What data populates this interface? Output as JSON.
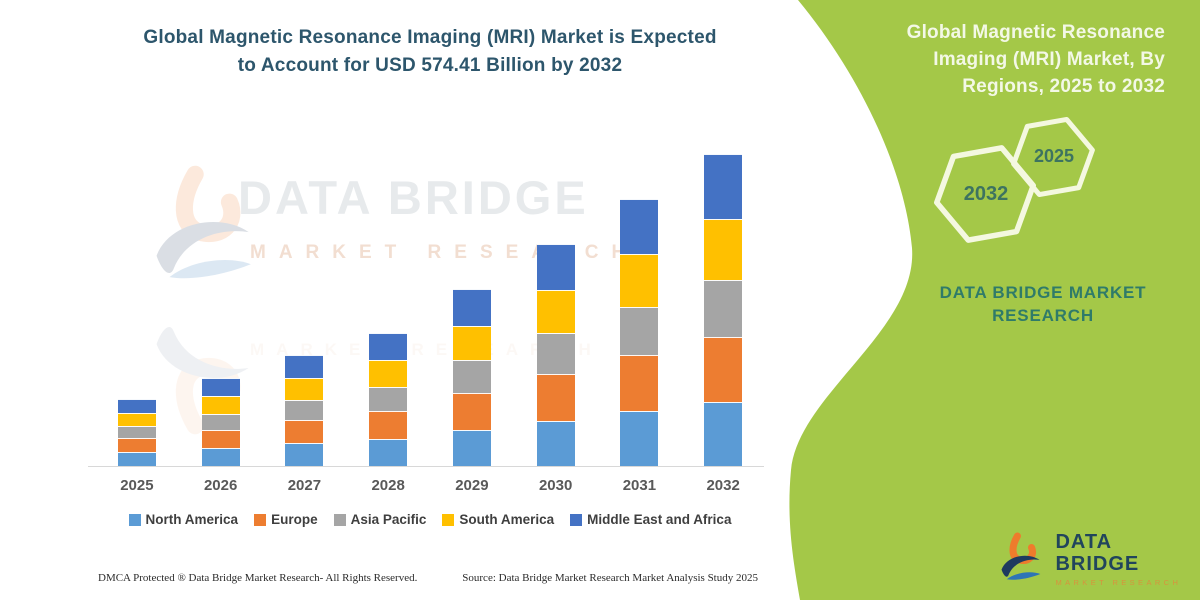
{
  "left": {
    "title_line1": "Global Magnetic Resonance Imaging (MRI) Market is Expected",
    "title_line2": "to Account for USD 574.41 Billion by 2032",
    "footer_dmca": "DMCA Protected ® Data Bridge Market Research-  All Rights Reserved.",
    "footer_source": "Source: Data Bridge Market Research  Market Analysis Study 2025"
  },
  "watermark": {
    "line1": "DATA BRIDGE",
    "line2": "MARKET RESEARCH"
  },
  "right_panel": {
    "bg_color": "#a4c848",
    "title_lines": [
      "Global Magnetic Resonance",
      "Imaging (MRI) Market, By",
      "Regions, 2025 to 2032"
    ],
    "hexagon_large_year": "2032",
    "hexagon_small_year": "2025",
    "brand_line1": "DATA BRIDGE MARKET",
    "brand_line2": "RESEARCH",
    "corner_logo_name": "DATA BRIDGE",
    "corner_logo_sub": "MARKET RESEARCH"
  },
  "chart_data": {
    "type": "bar",
    "stacked": true,
    "title": "Global Magnetic Resonance Imaging (MRI) Market is Expected to Account for USD 574.41 Billion by 2032",
    "unit": "USD Billion",
    "xlabel": "",
    "ylabel": "",
    "gridlines": false,
    "legend_position": "bottom",
    "ylim": [
      0,
      600
    ],
    "categories": [
      "2025",
      "2026",
      "2027",
      "2028",
      "2029",
      "2030",
      "2031",
      "2032"
    ],
    "series": [
      {
        "name": "North America",
        "color": "#5B9BD5",
        "values": [
          25.2,
          33.2,
          41.8,
          50.2,
          66.8,
          83.8,
          100.9,
          117.8
        ]
      },
      {
        "name": "Europe",
        "color": "#ED7D31",
        "values": [
          25.8,
          34.0,
          42.8,
          51.5,
          68.5,
          85.9,
          103.3,
          120.6
        ]
      },
      {
        "name": "Asia Pacific",
        "color": "#A5A5A5",
        "values": [
          22.4,
          29.5,
          37.1,
          44.6,
          59.3,
          74.4,
          89.5,
          104.5
        ]
      },
      {
        "name": "South America",
        "color": "#FFC000",
        "values": [
          24.1,
          31.8,
          40.0,
          48.0,
          63.9,
          80.2,
          96.4,
          112.6
        ]
      },
      {
        "name": "Middle East and Africa",
        "color": "#4472C4",
        "values": [
          25.5,
          33.5,
          42.2,
          50.7,
          67.5,
          84.7,
          101.8,
          118.9
        ]
      }
    ],
    "totals": [
      123,
      162,
      204,
      245,
      326,
      409,
      492,
      574.41
    ]
  }
}
